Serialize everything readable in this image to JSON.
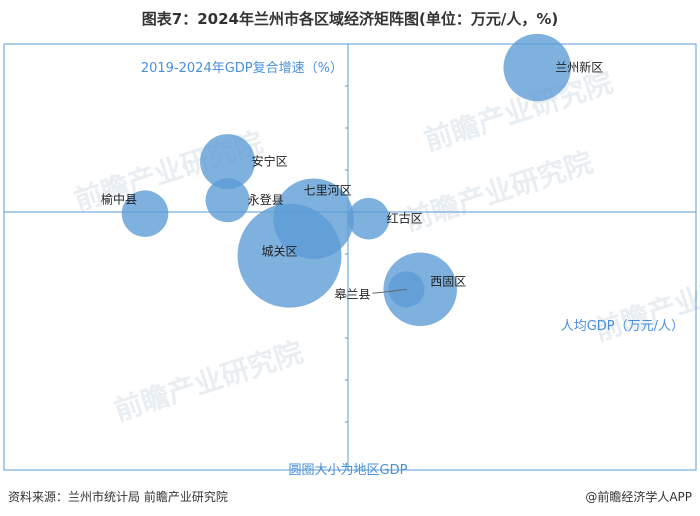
{
  "title": "图表7：2024年兰州市各区域经济矩阵图(单位：万元/人，%)",
  "source": "资料来源：兰州市统计局 前瞻产业研究院",
  "credit": "@前瞻经济学人APP",
  "watermark": "前瞻产业研究院",
  "colors": {
    "frame": "#5b9bd5",
    "bubble": "#5b9bd5",
    "axis_label": "#4a90d9"
  },
  "chart_data": {
    "type": "scatter",
    "bubble": true,
    "xlabel": "人均GDP（万元/人）",
    "ylabel": "2019-2024年GDP复合增速（%）",
    "size_label": "圆圈大小为地区GDP",
    "grid": false,
    "points": [
      {
        "name": "兰州新区",
        "x": 0.55,
        "y": 0.86,
        "size": 0.42
      },
      {
        "name": "安宁区",
        "x": -0.35,
        "y": 0.3,
        "size": 0.28
      },
      {
        "name": "永登县",
        "x": -0.35,
        "y": 0.07,
        "size": 0.18
      },
      {
        "name": "榆中县",
        "x": -0.59,
        "y": -0.01,
        "size": 0.2
      },
      {
        "name": "七里河区",
        "x": -0.1,
        "y": -0.04,
        "size": 0.6
      },
      {
        "name": "红古区",
        "x": 0.06,
        "y": -0.04,
        "size": 0.16
      },
      {
        "name": "城关区",
        "x": -0.17,
        "y": -0.26,
        "size": 1.0
      },
      {
        "name": "西固区",
        "x": 0.21,
        "y": -0.46,
        "size": 0.5
      },
      {
        "name": "皋兰县",
        "x": 0.17,
        "y": -0.46,
        "size": 0.12
      }
    ]
  }
}
